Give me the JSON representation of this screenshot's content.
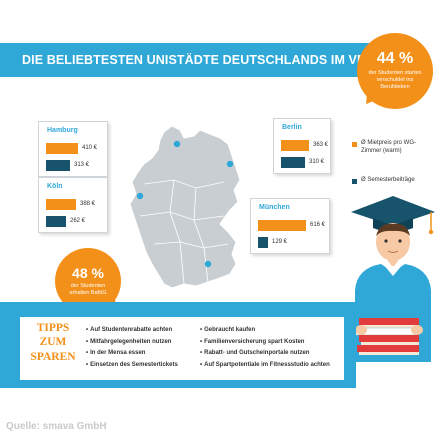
{
  "title": "DIE BELIEBTESTEN UNISTÄDTE DEUTSCHLANDS IM VERGLEICH",
  "bubble_top": {
    "value": "44 %",
    "text": "der Studenten starten verschuldet ins Berufsleben"
  },
  "bubble_left": {
    "value": "48 %",
    "text": "der Studenten erhalten BaföG"
  },
  "legend": {
    "rent": "Ø Mietpreis pro WG-Zimmer (warm)",
    "fee": "Ø Semesterbeiträge"
  },
  "colors": {
    "rent": "#f39019",
    "fee": "#17536a",
    "accent": "#2fa8d8"
  },
  "chart_data": {
    "type": "bar",
    "title": "DIE BELIEBTESTEN UNISTÄDTE DEUTSCHLANDS IM VERGLEICH",
    "categories": [
      "Hamburg",
      "Köln",
      "Berlin",
      "München"
    ],
    "series": [
      {
        "name": "Ø Mietpreis pro WG-Zimmer (warm)",
        "values": [
          410,
          388,
          363,
          616
        ],
        "labels": [
          "410 €",
          "388 €",
          "363 €",
          "616 €"
        ]
      },
      {
        "name": "Ø Semesterbeiträge",
        "values": [
          313,
          262,
          310,
          129
        ],
        "labels": [
          "313 €",
          "262 €",
          "310 €",
          "129 €"
        ]
      }
    ],
    "unit": "€",
    "xlabel": "",
    "ylabel": "",
    "legend_position": "right"
  },
  "tips": {
    "title": [
      "TIPPS",
      "ZUM",
      "SPAREN"
    ],
    "col1": [
      "Auf Studentenrabatte achten",
      "Mitfahrgelegenheiten nutzen",
      "In der Mensa essen",
      "Einsetzen des Semestertickets"
    ],
    "col2": [
      "Gebraucht kaufen",
      "Familienversicherung spart Kosten",
      "Rabatt- und Gutscheinportale nutzen",
      "Auf Spartpotentiale im Fitnessstudio achten"
    ]
  },
  "source": "Quelle: smava GmbH"
}
